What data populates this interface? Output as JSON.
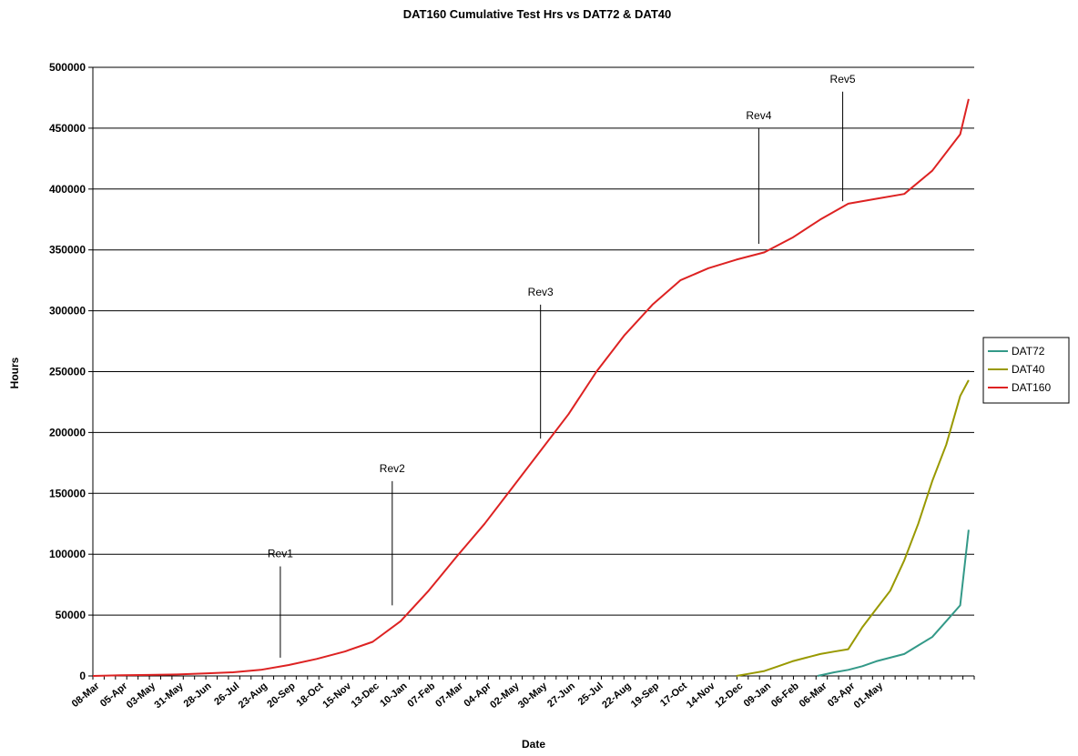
{
  "chart_data": {
    "type": "line",
    "title": "DAT160 Cumulative Test Hrs vs DAT72 & DAT40",
    "xlabel": "Date",
    "ylabel": "Hours",
    "ylim": [
      0,
      500000
    ],
    "yticks": [
      0,
      50000,
      100000,
      150000,
      200000,
      250000,
      300000,
      350000,
      400000,
      450000,
      500000
    ],
    "grid": true,
    "legend_position": "right",
    "x_tick_labels": [
      "08-Mar",
      "05-Apr",
      "03-May",
      "31-May",
      "28-Jun",
      "26-Jul",
      "23-Aug",
      "20-Sep",
      "18-Oct",
      "15-Nov",
      "13-Dec",
      "10-Jan",
      "07-Feb",
      "07-Mar",
      "04-Apr",
      "02-May",
      "30-May",
      "27-Jun",
      "25-Jul",
      "22-Aug",
      "19-Sep",
      "17-Oct",
      "14-Nov",
      "12-Dec",
      "09-Jan",
      "06-Feb",
      "06-Mar",
      "03-Apr",
      "01-May"
    ],
    "series": [
      {
        "name": "DAT72",
        "color": "#339988",
        "x": [
          25.9,
          26.5,
          27.0,
          27.5,
          28.0,
          28.5,
          29.0,
          29.5,
          30.0,
          30.5,
          31.0,
          31.3
        ],
        "y": [
          0,
          3000,
          5000,
          8000,
          12000,
          15000,
          18000,
          25000,
          32000,
          45000,
          58000,
          120000
        ]
      },
      {
        "name": "DAT40",
        "color": "#999900",
        "x": [
          23.0,
          23.5,
          24.0,
          24.5,
          25.0,
          25.5,
          26.0,
          26.5,
          27.0,
          27.5,
          28.0,
          28.5,
          29.0,
          29.5,
          30.0,
          30.5,
          31.0,
          31.3
        ],
        "y": [
          0,
          2000,
          4000,
          8000,
          12000,
          15000,
          18000,
          20000,
          22000,
          40000,
          55000,
          70000,
          95000,
          125000,
          160000,
          190000,
          230000,
          243000
        ]
      },
      {
        "name": "DAT160",
        "color": "#dd2222",
        "x": [
          0,
          1,
          2,
          3,
          4,
          5,
          6,
          7,
          8,
          9,
          10,
          11,
          12,
          13,
          14,
          15,
          16,
          17,
          18,
          19,
          20,
          21,
          22,
          23,
          24,
          25,
          26,
          27,
          28,
          29,
          30,
          31,
          31.3
        ],
        "y": [
          0,
          500,
          800,
          1200,
          2000,
          3000,
          5000,
          9000,
          14000,
          20000,
          28000,
          45000,
          70000,
          98000,
          125000,
          155000,
          185000,
          215000,
          250000,
          280000,
          305000,
          325000,
          335000,
          342000,
          348000,
          360000,
          375000,
          388000,
          392000,
          396000,
          415000,
          445000,
          474000
        ]
      }
    ],
    "annotations": [
      {
        "label": "Rev1",
        "x": 6.7,
        "y_top": 90000,
        "y_bottom": 15000
      },
      {
        "label": "Rev2",
        "x": 10.7,
        "y_top": 160000,
        "y_bottom": 58000
      },
      {
        "label": "Rev3",
        "x": 16.0,
        "y_top": 305000,
        "y_bottom": 195000
      },
      {
        "label": "Rev4",
        "x": 23.8,
        "y_top": 450000,
        "y_bottom": 355000
      },
      {
        "label": "Rev5",
        "x": 26.8,
        "y_top": 480000,
        "y_bottom": 390000
      }
    ]
  }
}
